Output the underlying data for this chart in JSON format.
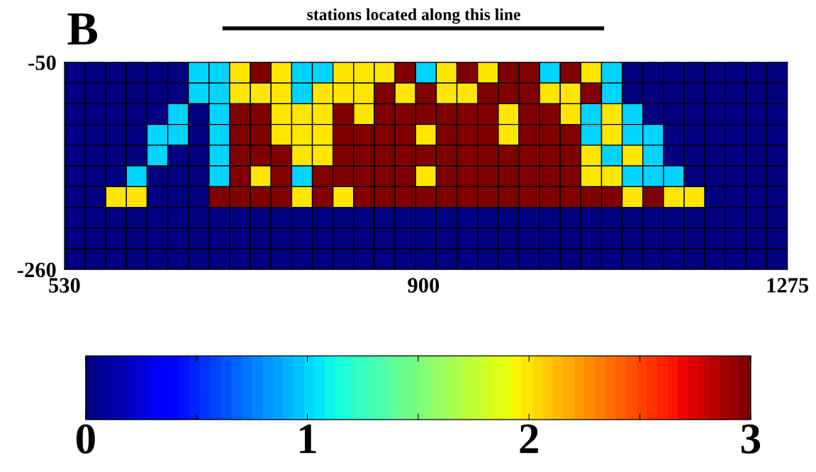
{
  "chart_data": {
    "type": "heatmap",
    "title": "B",
    "annotations": [
      "stations located along this line"
    ],
    "cells": [
      [
        0,
        0,
        0,
        0,
        0,
        0,
        1,
        1,
        2,
        3,
        2,
        1,
        1,
        2,
        2,
        2,
        3,
        1,
        2,
        3,
        2,
        3,
        3,
        1,
        3,
        2,
        1,
        0,
        0,
        0,
        0,
        0,
        0,
        0,
        0
      ],
      [
        0,
        0,
        0,
        0,
        0,
        0,
        1,
        1,
        2,
        2,
        2,
        1,
        2,
        2,
        2,
        3,
        2,
        3,
        2,
        2,
        3,
        3,
        3,
        2,
        2,
        3,
        1,
        0,
        0,
        0,
        0,
        0,
        0,
        0,
        0
      ],
      [
        0,
        0,
        0,
        0,
        0,
        1,
        0,
        1,
        3,
        3,
        2,
        2,
        2,
        3,
        2,
        3,
        3,
        3,
        3,
        3,
        3,
        2,
        3,
        3,
        2,
        1,
        2,
        1,
        0,
        0,
        0,
        0,
        0,
        0,
        0
      ],
      [
        0,
        0,
        0,
        0,
        1,
        1,
        0,
        1,
        3,
        3,
        2,
        2,
        2,
        3,
        3,
        3,
        3,
        2,
        3,
        3,
        3,
        2,
        3,
        3,
        3,
        1,
        2,
        1,
        1,
        0,
        0,
        0,
        0,
        0,
        0
      ],
      [
        0,
        0,
        0,
        0,
        1,
        0,
        0,
        1,
        3,
        3,
        3,
        2,
        2,
        3,
        3,
        3,
        3,
        3,
        3,
        3,
        3,
        3,
        3,
        3,
        3,
        2,
        1,
        2,
        1,
        0,
        0,
        0,
        0,
        0,
        0
      ],
      [
        0,
        0,
        0,
        1,
        0,
        0,
        0,
        1,
        3,
        2,
        3,
        1,
        3,
        3,
        3,
        3,
        3,
        2,
        3,
        3,
        3,
        3,
        3,
        3,
        3,
        2,
        2,
        1,
        1,
        1,
        0,
        0,
        0,
        0,
        0
      ],
      [
        0,
        0,
        2,
        2,
        0,
        0,
        0,
        3,
        3,
        3,
        3,
        2,
        3,
        2,
        3,
        3,
        3,
        3,
        3,
        3,
        3,
        3,
        3,
        3,
        3,
        3,
        3,
        2,
        3,
        2,
        2,
        0,
        0,
        0,
        0
      ],
      [
        0,
        0,
        0,
        0,
        0,
        0,
        0,
        0,
        0,
        0,
        0,
        0,
        0,
        0,
        0,
        0,
        0,
        0,
        0,
        0,
        0,
        0,
        0,
        0,
        0,
        0,
        0,
        0,
        0,
        0,
        0,
        0,
        0,
        0,
        0
      ],
      [
        0,
        0,
        0,
        0,
        0,
        0,
        0,
        0,
        0,
        0,
        0,
        0,
        0,
        0,
        0,
        0,
        0,
        0,
        0,
        0,
        0,
        0,
        0,
        0,
        0,
        0,
        0,
        0,
        0,
        0,
        0,
        0,
        0,
        0,
        0
      ],
      [
        0,
        0,
        0,
        0,
        0,
        0,
        0,
        0,
        0,
        0,
        0,
        0,
        0,
        0,
        0,
        0,
        0,
        0,
        0,
        0,
        0,
        0,
        0,
        0,
        0,
        0,
        0,
        0,
        0,
        0,
        0,
        0,
        0,
        0,
        0
      ]
    ],
    "xlim": [
      530,
      1275
    ],
    "xticks": [
      530,
      900,
      1275
    ],
    "ylim": [
      -260,
      -50
    ],
    "yticks": [
      -260,
      -50
    ],
    "clim": [
      0,
      3
    ],
    "cticks": [
      0,
      {
        "value": 0.5,
        "label": null
      },
      1,
      {
        "value": 1.5,
        "label": null
      },
      2,
      {
        "value": 2.5,
        "label": null
      },
      3
    ]
  }
}
